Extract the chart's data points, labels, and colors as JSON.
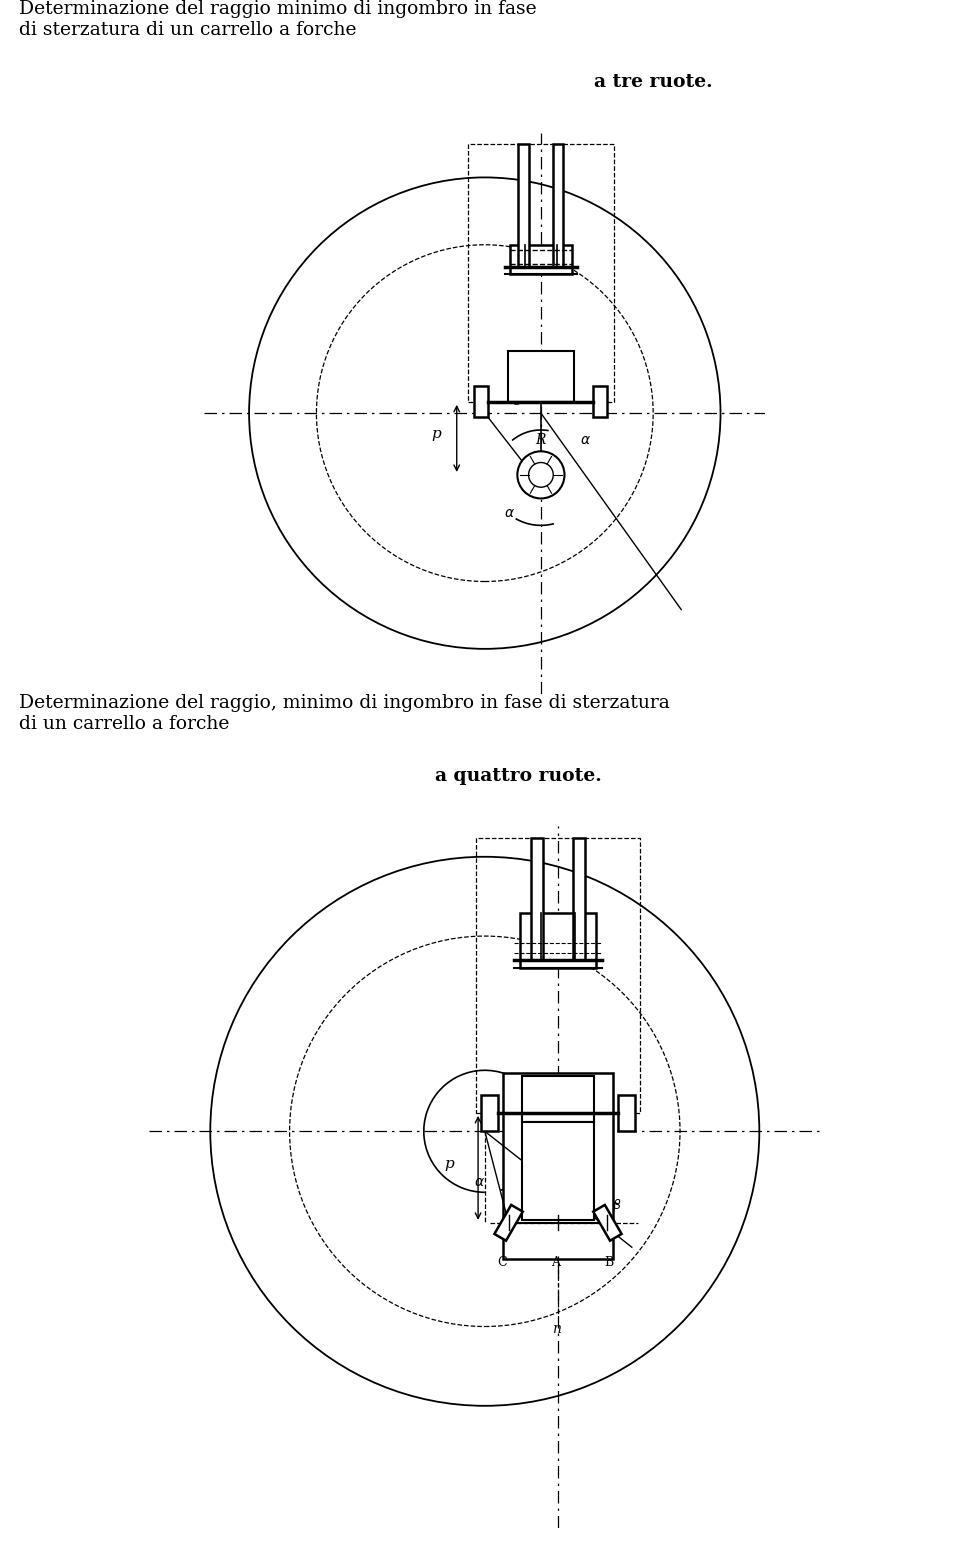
{
  "title1_normal": "Determinazione del raggio minimo di ingombro in fase\ndi sterzatura di un carrello a forche ",
  "title1_bold": "a tre ruote.",
  "title2_normal": "Determinazione del raggio, minimo di ingombro in fase di sterzatura\ndi un carrello a forche ",
  "title2_bold": "a quattro ruote.",
  "bg_color": "#ffffff",
  "lc": "#000000",
  "fig_width": 9.6,
  "fig_height": 15.59
}
